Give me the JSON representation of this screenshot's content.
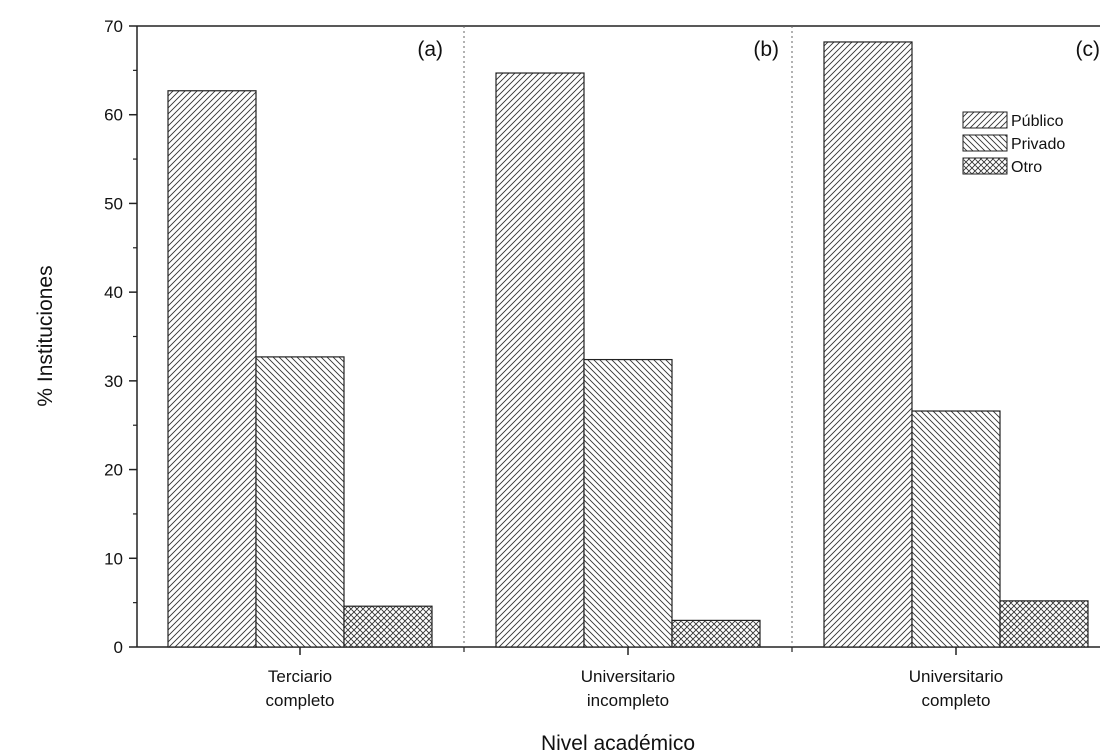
{
  "chart_data": {
    "type": "bar",
    "xlabel": "Nivel académico",
    "ylabel": "% Instituciones",
    "ylim": [
      0,
      70
    ],
    "y_ticks": [
      0,
      10,
      20,
      30,
      40,
      50,
      60,
      70
    ],
    "categories": [
      [
        "Terciario",
        "completo"
      ],
      [
        "Universitario",
        "incompleto"
      ],
      [
        "Universitario",
        "completo"
      ]
    ],
    "panel_labels": [
      "(a)",
      "(b)",
      "(c)"
    ],
    "series": [
      {
        "name": "Público",
        "pattern": "hatch-forward",
        "values": [
          62.7,
          64.7,
          68.2
        ]
      },
      {
        "name": "Privado",
        "pattern": "hatch-back",
        "values": [
          32.7,
          32.4,
          26.6
        ]
      },
      {
        "name": "Otro",
        "pattern": "crosshatch",
        "values": [
          4.6,
          3.0,
          5.2
        ]
      }
    ],
    "legend_position": "top-right",
    "grid": false,
    "panel_separators": "dotted vertical lines between categories",
    "colors": {
      "bar_fill": "#ffffff",
      "bar_stroke": "#222222",
      "hatch": "#333333",
      "separator": "#666666"
    }
  }
}
